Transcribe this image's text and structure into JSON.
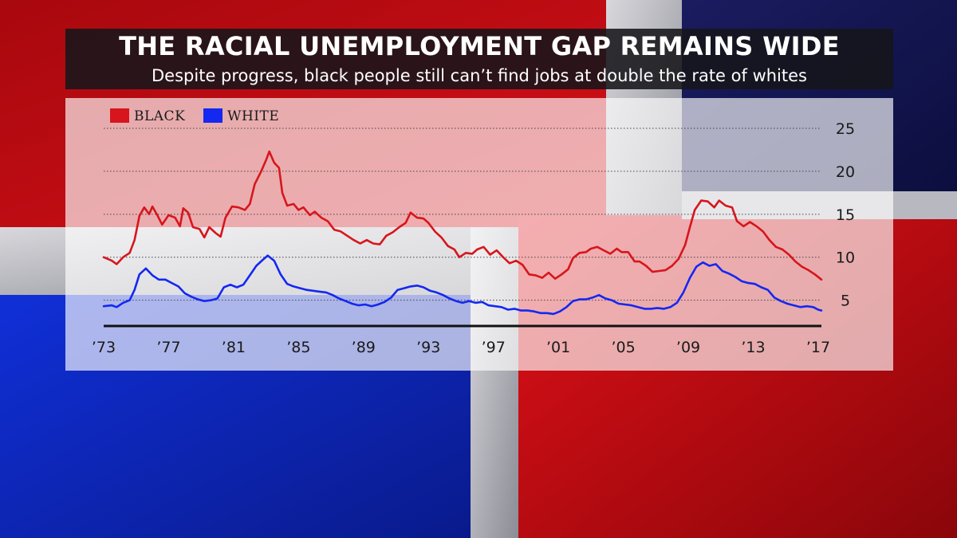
{
  "header": {
    "title": "THE RACIAL UNEMPLOYMENT GAP REMAINS WIDE",
    "subtitle": "Despite progress, black people still can’t find jobs at double the rate of whites"
  },
  "colors": {
    "black_series": "#d6161c",
    "white_series": "#1428f0",
    "axis": "#111111"
  },
  "chart_data": {
    "type": "line",
    "title": "THE RACIAL UNEMPLOYMENT GAP REMAINS WIDE",
    "subtitle": "Despite progress, black people still can’t find jobs at double the rate of whites",
    "xlabel": "",
    "ylabel": "",
    "xlim": [
      1973,
      2017.2
    ],
    "ylim": [
      2,
      25
    ],
    "yticks": [
      5,
      10,
      15,
      20,
      25
    ],
    "xticks": [
      {
        "value": 1973,
        "label": "’73"
      },
      {
        "value": 1977,
        "label": "’77"
      },
      {
        "value": 1981,
        "label": "’81"
      },
      {
        "value": 1985,
        "label": "’85"
      },
      {
        "value": 1989,
        "label": "’89"
      },
      {
        "value": 1993,
        "label": "’93"
      },
      {
        "value": 1997,
        "label": "’97"
      },
      {
        "value": 2001,
        "label": "’01"
      },
      {
        "value": 2005,
        "label": "’05"
      },
      {
        "value": 2009,
        "label": "’09"
      },
      {
        "value": 2013,
        "label": "’13"
      },
      {
        "value": 2017,
        "label": "’17"
      }
    ],
    "grid": "horizontal dotted",
    "legend": "top-left",
    "series": [
      {
        "name": "BLACK",
        "color": "#d6161c",
        "points": [
          [
            1973.0,
            10.0
          ],
          [
            1973.5,
            9.6
          ],
          [
            1973.8,
            9.2
          ],
          [
            1974.2,
            10.0
          ],
          [
            1974.6,
            10.5
          ],
          [
            1974.9,
            12.0
          ],
          [
            1975.2,
            14.8
          ],
          [
            1975.5,
            15.8
          ],
          [
            1975.8,
            15.0
          ],
          [
            1976.0,
            15.9
          ],
          [
            1976.3,
            14.9
          ],
          [
            1976.6,
            13.8
          ],
          [
            1977.0,
            14.9
          ],
          [
            1977.4,
            14.6
          ],
          [
            1977.7,
            13.6
          ],
          [
            1977.9,
            15.7
          ],
          [
            1978.2,
            15.2
          ],
          [
            1978.5,
            13.5
          ],
          [
            1978.9,
            13.3
          ],
          [
            1979.2,
            12.3
          ],
          [
            1979.5,
            13.5
          ],
          [
            1979.9,
            12.8
          ],
          [
            1980.2,
            12.4
          ],
          [
            1980.5,
            14.6
          ],
          [
            1980.9,
            15.9
          ],
          [
            1981.3,
            15.8
          ],
          [
            1981.7,
            15.5
          ],
          [
            1982.0,
            16.2
          ],
          [
            1982.3,
            18.5
          ],
          [
            1982.7,
            20.0
          ],
          [
            1983.0,
            21.3
          ],
          [
            1983.2,
            22.3
          ],
          [
            1983.5,
            21.0
          ],
          [
            1983.8,
            20.4
          ],
          [
            1984.0,
            17.5
          ],
          [
            1984.3,
            16.0
          ],
          [
            1984.7,
            16.2
          ],
          [
            1985.0,
            15.5
          ],
          [
            1985.3,
            15.8
          ],
          [
            1985.7,
            14.9
          ],
          [
            1986.0,
            15.3
          ],
          [
            1986.4,
            14.6
          ],
          [
            1986.8,
            14.2
          ],
          [
            1987.2,
            13.2
          ],
          [
            1987.6,
            13.0
          ],
          [
            1988.0,
            12.5
          ],
          [
            1988.4,
            12.0
          ],
          [
            1988.8,
            11.6
          ],
          [
            1989.2,
            12.0
          ],
          [
            1989.6,
            11.6
          ],
          [
            1990.0,
            11.5
          ],
          [
            1990.4,
            12.5
          ],
          [
            1990.8,
            12.9
          ],
          [
            1991.2,
            13.5
          ],
          [
            1991.6,
            14.0
          ],
          [
            1991.9,
            15.2
          ],
          [
            1992.3,
            14.6
          ],
          [
            1992.7,
            14.5
          ],
          [
            1993.0,
            14.0
          ],
          [
            1993.4,
            13.0
          ],
          [
            1993.8,
            12.3
          ],
          [
            1994.2,
            11.3
          ],
          [
            1994.6,
            10.9
          ],
          [
            1994.9,
            10.0
          ],
          [
            1995.3,
            10.5
          ],
          [
            1995.7,
            10.4
          ],
          [
            1996.0,
            10.9
          ],
          [
            1996.4,
            11.2
          ],
          [
            1996.8,
            10.3
          ],
          [
            1997.2,
            10.8
          ],
          [
            1997.6,
            10.0
          ],
          [
            1998.0,
            9.3
          ],
          [
            1998.4,
            9.6
          ],
          [
            1998.8,
            9.1
          ],
          [
            1999.2,
            8.0
          ],
          [
            1999.6,
            7.9
          ],
          [
            2000.0,
            7.6
          ],
          [
            2000.4,
            8.2
          ],
          [
            2000.8,
            7.5
          ],
          [
            2001.2,
            8.0
          ],
          [
            2001.6,
            8.6
          ],
          [
            2001.9,
            9.9
          ],
          [
            2002.3,
            10.5
          ],
          [
            2002.7,
            10.6
          ],
          [
            2003.0,
            11.0
          ],
          [
            2003.4,
            11.2
          ],
          [
            2003.8,
            10.8
          ],
          [
            2004.2,
            10.4
          ],
          [
            2004.6,
            11.0
          ],
          [
            2004.9,
            10.6
          ],
          [
            2005.3,
            10.6
          ],
          [
            2005.7,
            9.5
          ],
          [
            2006.0,
            9.5
          ],
          [
            2006.4,
            9.0
          ],
          [
            2006.8,
            8.3
          ],
          [
            2007.2,
            8.4
          ],
          [
            2007.6,
            8.5
          ],
          [
            2008.0,
            9.0
          ],
          [
            2008.4,
            9.8
          ],
          [
            2008.8,
            11.4
          ],
          [
            2009.1,
            13.5
          ],
          [
            2009.4,
            15.5
          ],
          [
            2009.8,
            16.6
          ],
          [
            2010.2,
            16.5
          ],
          [
            2010.6,
            15.8
          ],
          [
            2010.9,
            16.6
          ],
          [
            2011.3,
            16.0
          ],
          [
            2011.7,
            15.8
          ],
          [
            2012.0,
            14.2
          ],
          [
            2012.4,
            13.6
          ],
          [
            2012.8,
            14.1
          ],
          [
            2013.2,
            13.6
          ],
          [
            2013.6,
            13.0
          ],
          [
            2014.0,
            12.0
          ],
          [
            2014.4,
            11.2
          ],
          [
            2014.8,
            10.9
          ],
          [
            2015.2,
            10.3
          ],
          [
            2015.6,
            9.5
          ],
          [
            2016.0,
            8.9
          ],
          [
            2016.4,
            8.5
          ],
          [
            2016.8,
            8.0
          ],
          [
            2017.2,
            7.4
          ]
        ]
      },
      {
        "name": "WHITE",
        "color": "#1428f0",
        "points": [
          [
            1973.0,
            4.3
          ],
          [
            1973.5,
            4.4
          ],
          [
            1973.8,
            4.2
          ],
          [
            1974.2,
            4.7
          ],
          [
            1974.6,
            5.0
          ],
          [
            1974.9,
            6.2
          ],
          [
            1975.2,
            8.0
          ],
          [
            1975.6,
            8.7
          ],
          [
            1976.0,
            7.9
          ],
          [
            1976.4,
            7.4
          ],
          [
            1976.8,
            7.4
          ],
          [
            1977.2,
            7.0
          ],
          [
            1977.6,
            6.6
          ],
          [
            1978.0,
            5.8
          ],
          [
            1978.4,
            5.4
          ],
          [
            1978.8,
            5.1
          ],
          [
            1979.2,
            4.9
          ],
          [
            1979.6,
            5.0
          ],
          [
            1980.0,
            5.2
          ],
          [
            1980.4,
            6.5
          ],
          [
            1980.8,
            6.8
          ],
          [
            1981.2,
            6.5
          ],
          [
            1981.6,
            6.8
          ],
          [
            1982.0,
            7.9
          ],
          [
            1982.4,
            9.0
          ],
          [
            1982.8,
            9.7
          ],
          [
            1983.1,
            10.2
          ],
          [
            1983.5,
            9.6
          ],
          [
            1983.9,
            8.0
          ],
          [
            1984.3,
            6.9
          ],
          [
            1984.7,
            6.6
          ],
          [
            1985.1,
            6.4
          ],
          [
            1985.5,
            6.2
          ],
          [
            1985.9,
            6.1
          ],
          [
            1986.3,
            6.0
          ],
          [
            1986.7,
            5.9
          ],
          [
            1987.1,
            5.6
          ],
          [
            1987.5,
            5.2
          ],
          [
            1987.9,
            4.9
          ],
          [
            1988.3,
            4.6
          ],
          [
            1988.7,
            4.4
          ],
          [
            1989.1,
            4.5
          ],
          [
            1989.5,
            4.3
          ],
          [
            1989.9,
            4.5
          ],
          [
            1990.3,
            4.8
          ],
          [
            1990.7,
            5.3
          ],
          [
            1991.1,
            6.2
          ],
          [
            1991.5,
            6.4
          ],
          [
            1991.9,
            6.6
          ],
          [
            1992.3,
            6.7
          ],
          [
            1992.7,
            6.5
          ],
          [
            1993.1,
            6.1
          ],
          [
            1993.5,
            5.9
          ],
          [
            1993.9,
            5.6
          ],
          [
            1994.3,
            5.2
          ],
          [
            1994.7,
            4.9
          ],
          [
            1995.1,
            4.7
          ],
          [
            1995.5,
            4.9
          ],
          [
            1995.9,
            4.7
          ],
          [
            1996.3,
            4.8
          ],
          [
            1996.7,
            4.4
          ],
          [
            1997.1,
            4.3
          ],
          [
            1997.5,
            4.2
          ],
          [
            1997.9,
            3.9
          ],
          [
            1998.3,
            4.0
          ],
          [
            1998.7,
            3.8
          ],
          [
            1999.1,
            3.8
          ],
          [
            1999.5,
            3.7
          ],
          [
            1999.9,
            3.5
          ],
          [
            2000.3,
            3.5
          ],
          [
            2000.7,
            3.4
          ],
          [
            2001.1,
            3.7
          ],
          [
            2001.5,
            4.2
          ],
          [
            2001.9,
            4.9
          ],
          [
            2002.3,
            5.1
          ],
          [
            2002.7,
            5.1
          ],
          [
            2003.1,
            5.3
          ],
          [
            2003.5,
            5.6
          ],
          [
            2003.9,
            5.2
          ],
          [
            2004.3,
            5.0
          ],
          [
            2004.7,
            4.6
          ],
          [
            2005.1,
            4.5
          ],
          [
            2005.5,
            4.4
          ],
          [
            2005.9,
            4.2
          ],
          [
            2006.3,
            4.0
          ],
          [
            2006.7,
            4.0
          ],
          [
            2007.1,
            4.1
          ],
          [
            2007.5,
            4.0
          ],
          [
            2007.9,
            4.2
          ],
          [
            2008.3,
            4.7
          ],
          [
            2008.7,
            5.9
          ],
          [
            2009.1,
            7.6
          ],
          [
            2009.5,
            8.9
          ],
          [
            2009.9,
            9.4
          ],
          [
            2010.3,
            9.0
          ],
          [
            2010.7,
            9.2
          ],
          [
            2011.1,
            8.4
          ],
          [
            2011.5,
            8.1
          ],
          [
            2011.9,
            7.7
          ],
          [
            2012.3,
            7.2
          ],
          [
            2012.7,
            7.0
          ],
          [
            2013.1,
            6.9
          ],
          [
            2013.5,
            6.5
          ],
          [
            2013.9,
            6.2
          ],
          [
            2014.3,
            5.3
          ],
          [
            2014.7,
            4.9
          ],
          [
            2015.1,
            4.6
          ],
          [
            2015.5,
            4.4
          ],
          [
            2015.9,
            4.2
          ],
          [
            2016.3,
            4.3
          ],
          [
            2016.7,
            4.2
          ],
          [
            2017.0,
            3.9
          ],
          [
            2017.2,
            3.8
          ]
        ]
      }
    ]
  }
}
